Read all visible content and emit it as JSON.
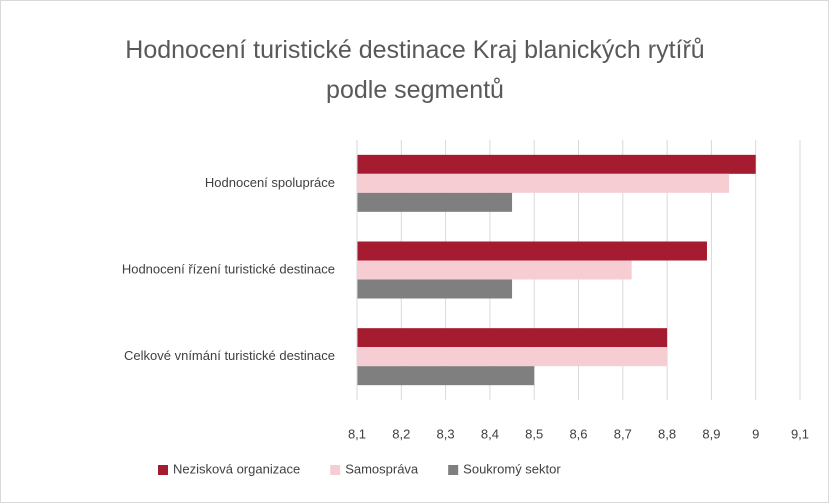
{
  "chart_data": {
    "type": "barh",
    "title": "Hodnocení turistické destinace Kraj blanických rytířů podle segmentů",
    "categories": [
      "Hodnocení spolupráce",
      "Hodnocení řízení turistické destinace",
      "Celkové vnímání turistické destinace"
    ],
    "series": [
      {
        "name": "Nezisková organizace",
        "color": "#a51c30",
        "values": [
          9.0,
          8.89,
          8.8
        ]
      },
      {
        "name": "Samospráva",
        "color": "#f7cdd4",
        "values": [
          8.94,
          8.72,
          8.8
        ]
      },
      {
        "name": "Soukromý sektor",
        "color": "#7f7f7f",
        "values": [
          8.45,
          8.45,
          8.5
        ]
      }
    ],
    "xlim": [
      8.1,
      9.1
    ],
    "xticks": [
      {
        "value": 8.1,
        "label": "8,1"
      },
      {
        "value": 8.2,
        "label": "8,2"
      },
      {
        "value": 8.3,
        "label": "8,3"
      },
      {
        "value": 8.4,
        "label": "8,4"
      },
      {
        "value": 8.5,
        "label": "8,5"
      },
      {
        "value": 8.6,
        "label": "8,6"
      },
      {
        "value": 8.7,
        "label": "8,7"
      },
      {
        "value": 8.8,
        "label": "8,8"
      },
      {
        "value": 8.9,
        "label": "8,9"
      },
      9,
      {
        "value": 9.1,
        "label": "9,1"
      }
    ],
    "grid": true,
    "legend": "bottom"
  }
}
